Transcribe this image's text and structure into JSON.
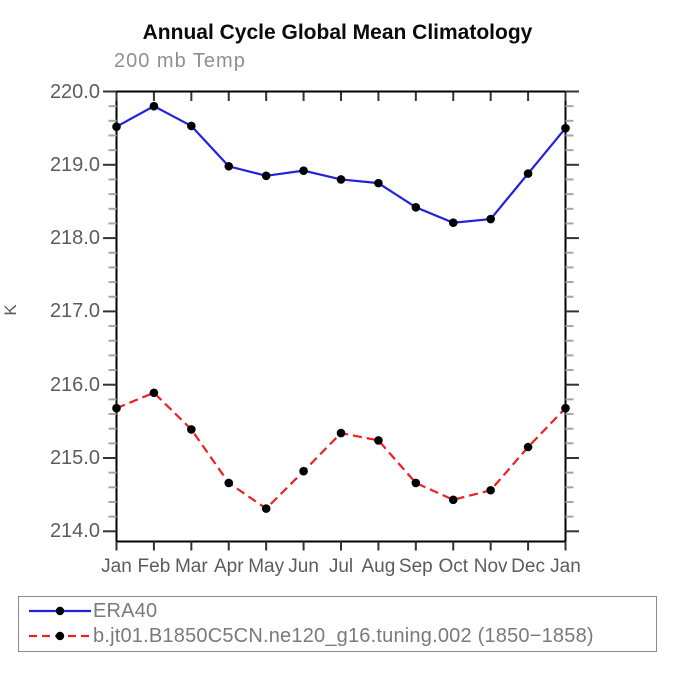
{
  "title": "Annual Cycle Global Mean Climatology",
  "subtitle": "200 mb Temp",
  "chart_data": {
    "type": "line",
    "x_categories": [
      "Jan",
      "Feb",
      "Mar",
      "Apr",
      "May",
      "Jun",
      "Jul",
      "Aug",
      "Sep",
      "Oct",
      "Nov",
      "Dec",
      "Jan"
    ],
    "ylabel": "K",
    "ylim": [
      213.86,
      220.0
    ],
    "ytick_labels": [
      "220.0",
      "219.0",
      "218.0",
      "217.0",
      "216.0",
      "215.0",
      "214.0"
    ],
    "yticks": [
      220.0,
      219.0,
      218.0,
      217.0,
      216.0,
      215.0,
      214.0
    ],
    "minor_tick_step": 0.2,
    "grid": false,
    "legend_position": "bottom-left",
    "series": [
      {
        "name": "ERA40",
        "color": "#2222dd",
        "line_style": "solid",
        "marker": "filled-circle",
        "marker_color": "#000000",
        "values": [
          219.52,
          219.8,
          219.53,
          218.98,
          218.85,
          218.92,
          218.8,
          218.75,
          218.42,
          218.21,
          218.26,
          218.88,
          219.5
        ]
      },
      {
        "name": "b.jt01.B1850C5CN.ne120_g16.tuning.002 (1850−1858)",
        "color": "#ee2020",
        "line_style": "dashed",
        "marker": "filled-circle",
        "marker_color": "#000000",
        "values": [
          215.68,
          215.89,
          215.39,
          214.66,
          214.31,
          214.82,
          215.34,
          215.24,
          214.66,
          214.43,
          214.56,
          215.15,
          215.68
        ]
      }
    ]
  },
  "colors": {
    "frame": "#000000",
    "major_tick": "#333333",
    "minor_tick": "#a6a6a6",
    "tick_label": "#5c5c5c",
    "title": "#0a0a0a",
    "subtitle": "#8f8f8f",
    "legend_text": "#7a7a7a",
    "legend_border": "#8a8a8a"
  }
}
